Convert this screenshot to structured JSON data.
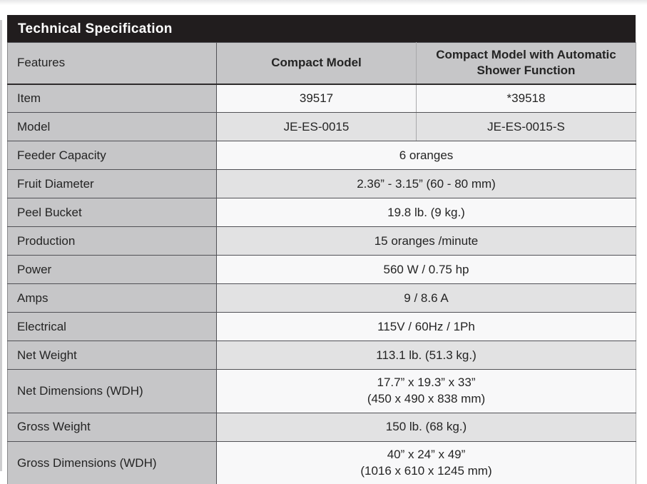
{
  "title_bar": "Technical Specification",
  "table": {
    "columns": {
      "features_header": "Features",
      "compact_model_header": "Compact Model",
      "compact_model_shower_header": "Compact Model with Automatic Shower Function"
    },
    "rows": [
      {
        "label": "Item",
        "compact": "39517",
        "shower": "*39518"
      },
      {
        "label": "Model",
        "compact": "JE-ES-0015",
        "shower": "JE-ES-0015-S"
      },
      {
        "label": "Feeder Capacity",
        "value": "6 oranges"
      },
      {
        "label": "Fruit Diameter",
        "value": "2.36” - 3.15” (60 - 80 mm)"
      },
      {
        "label": "Peel Bucket",
        "value": "19.8 lb. (9 kg.)"
      },
      {
        "label": "Production",
        "value": "15 oranges /minute"
      },
      {
        "label": "Power",
        "value": "560 W / 0.75 hp"
      },
      {
        "label": "Amps",
        "value": "9 / 8.6 A"
      },
      {
        "label": "Electrical",
        "value": "115V / 60Hz / 1Ph"
      },
      {
        "label": "Net Weight",
        "value": "113.1 lb. (51.3 kg.)"
      },
      {
        "label": "Net Dimensions (WDH)",
        "value": "17.7” x 19.3” x 33”",
        "value_line2": "(450 x 490 x 838 mm)"
      },
      {
        "label": "Gross Weight",
        "value": "150 lb. (68 kg.)"
      },
      {
        "label": "Gross Dimensions (WDH)",
        "value": "40” x 24” x 49”",
        "value_line2": "(1016 x 610 x 1245 mm)"
      }
    ]
  },
  "colors": {
    "title_bar_bg": "#211d1e",
    "title_text": "#ffffff",
    "header_bg": "#c6c6c8",
    "label_column_bg": "#c6c6c8",
    "row_light_bg": "#f8f8f9",
    "row_shaded_bg": "#e2e2e3",
    "border_dark": "#515156",
    "border_light": "#a9a9ab",
    "text": "#242424"
  }
}
